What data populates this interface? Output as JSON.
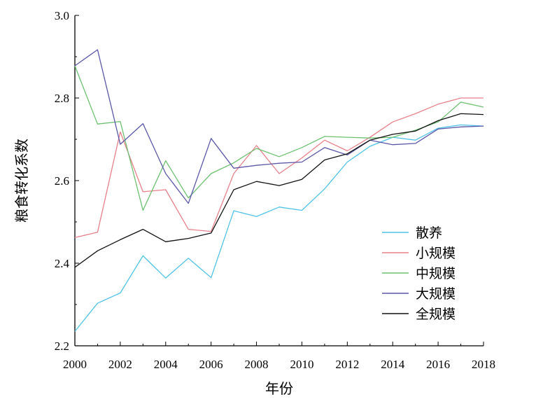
{
  "chart_data": {
    "type": "line",
    "title": "",
    "xlabel": "年份",
    "ylabel": "粮食转化系数",
    "xlim": [
      2000,
      2018
    ],
    "ylim": [
      2.2,
      3.0
    ],
    "x_ticks": [
      2000,
      2002,
      2004,
      2006,
      2008,
      2010,
      2012,
      2014,
      2016,
      2018
    ],
    "y_ticks": [
      "2.2",
      "2.4",
      "2.6",
      "2.8",
      "3.0"
    ],
    "legend_position": "center-right",
    "grid": false,
    "x": [
      2000,
      2001,
      2002,
      2003,
      2004,
      2005,
      2006,
      2007,
      2008,
      2009,
      2010,
      2011,
      2012,
      2013,
      2014,
      2015,
      2016,
      2017,
      2018
    ],
    "series": [
      {
        "name": "散养",
        "color": "#4fc3e8",
        "values": [
          2.235,
          2.303,
          2.328,
          2.418,
          2.364,
          2.412,
          2.365,
          2.527,
          2.513,
          2.536,
          2.528,
          2.58,
          2.645,
          2.683,
          2.705,
          2.698,
          2.727,
          2.735,
          2.732
        ]
      },
      {
        "name": "小规模",
        "color": "#e8808a",
        "values": [
          2.462,
          2.475,
          2.718,
          2.573,
          2.578,
          2.482,
          2.477,
          2.617,
          2.685,
          2.617,
          2.655,
          2.698,
          2.672,
          2.705,
          2.742,
          2.762,
          2.785,
          2.8,
          2.8
        ]
      },
      {
        "name": "中规模",
        "color": "#6cc070",
        "values": [
          2.878,
          2.737,
          2.743,
          2.528,
          2.648,
          2.558,
          2.617,
          2.643,
          2.678,
          2.658,
          2.68,
          2.707,
          2.705,
          2.703,
          2.705,
          2.722,
          2.742,
          2.79,
          2.778
        ]
      },
      {
        "name": "大规模",
        "color": "#5b57a8",
        "values": [
          2.878,
          2.917,
          2.688,
          2.738,
          2.617,
          2.545,
          2.702,
          2.63,
          2.637,
          2.642,
          2.645,
          2.68,
          2.662,
          2.698,
          2.687,
          2.69,
          2.725,
          2.73,
          2.732
        ]
      },
      {
        "name": "全规模",
        "color": "#111111",
        "values": [
          2.39,
          2.43,
          2.457,
          2.482,
          2.452,
          2.46,
          2.473,
          2.578,
          2.598,
          2.588,
          2.603,
          2.65,
          2.665,
          2.698,
          2.712,
          2.72,
          2.745,
          2.762,
          2.76
        ]
      }
    ]
  }
}
